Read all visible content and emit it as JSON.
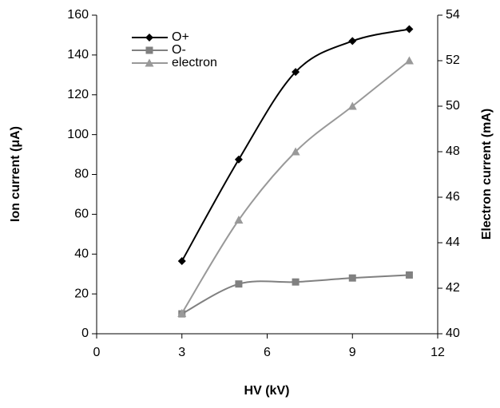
{
  "chart_data": {
    "type": "line",
    "x_label": "HV (kV)",
    "y_label": "Ion current (μA)",
    "y2_label": "Electron current (mA)",
    "x": [
      3,
      5,
      7,
      9,
      11
    ],
    "series": [
      {
        "name": "O+",
        "color": "#000000",
        "marker": "diamond",
        "values": [
          36.5,
          87.5,
          131.5,
          147,
          153
        ]
      },
      {
        "name": "O-",
        "color": "#808080",
        "marker": "square",
        "values": [
          10,
          25,
          26,
          28,
          29.5
        ]
      },
      {
        "name": "electron",
        "color": "#999999",
        "marker": "triangle",
        "axis": "y2",
        "values": [
          40.9,
          45,
          48,
          50,
          52
        ]
      }
    ],
    "xlim": [
      0,
      12
    ],
    "xticks": [
      0,
      3,
      6,
      9,
      12
    ],
    "ylim": [
      0,
      160
    ],
    "yticks": [
      0,
      20,
      40,
      60,
      80,
      100,
      120,
      140,
      160
    ],
    "y2lim": [
      40,
      54
    ],
    "y2ticks": [
      40,
      42,
      44,
      46,
      48,
      50,
      52,
      54
    ],
    "smooth": true,
    "legend": "upper left"
  }
}
